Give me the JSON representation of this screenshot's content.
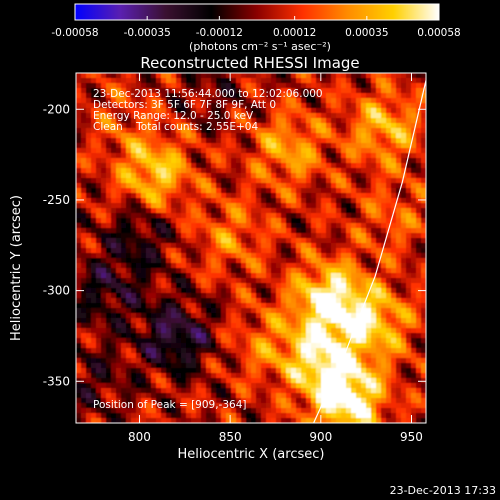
{
  "chart_data": {
    "type": "heatmap",
    "title": "Reconstructed RHESSI Image",
    "xlabel": "Heliocentric X (arcsec)",
    "ylabel": "Heliocentric Y (arcsec)",
    "xlim": [
      765,
      958
    ],
    "ylim": [
      -373,
      -180
    ],
    "x_ticks": [
      800,
      850,
      900,
      950
    ],
    "y_ticks": [
      -200,
      -250,
      -300,
      -350
    ],
    "colorbar": {
      "min": -0.00058,
      "max": 0.00058,
      "ticks": [
        -0.00058,
        -0.00035,
        -0.00012,
        0.00012,
        0.00035,
        0.00058
      ],
      "tick_labels": [
        "-0.00058",
        "-0.00035",
        "-0.00012",
        "0.00012",
        "0.00035",
        "0.00058"
      ],
      "units_label": "(photons cm⁻² s⁻¹ asec⁻²)",
      "colormap": [
        "#0000ff",
        "#5a1fb0",
        "#3a1030",
        "#000000",
        "#8b0000",
        "#ff3000",
        "#ff8c00",
        "#ffd000",
        "#ffffff"
      ]
    },
    "annotations": [
      "23-Dec-2013 11:56:44.000 to 12:02:06.000",
      "Detectors: 3F 5F 6F 7F 8F 9F, Att 0",
      "Energy Range: 12.0 - 25.0 keV",
      "Clean    Total counts: 2.55E+04"
    ],
    "peak_label": "Position of Peak = [909,-364]",
    "peak": [
      909,
      -364
    ],
    "features": [
      {
        "x": 905,
        "y": -305,
        "v": 0.00052
      },
      {
        "x": 915,
        "y": -360,
        "v": 0.00055
      },
      {
        "x": 900,
        "y": -338,
        "v": 0.0004
      },
      {
        "x": 930,
        "y": -318,
        "v": 0.00035
      },
      {
        "x": 808,
        "y": -235,
        "v": 0.00038
      },
      {
        "x": 935,
        "y": -210,
        "v": 0.00032
      },
      {
        "x": 882,
        "y": -222,
        "v": 0.00028
      },
      {
        "x": 850,
        "y": -270,
        "v": 0.0002
      },
      {
        "x": 870,
        "y": -330,
        "v": 0.00018
      },
      {
        "x": 940,
        "y": -260,
        "v": 0.00015
      },
      {
        "x": 790,
        "y": -205,
        "v": 0.0001
      },
      {
        "x": 820,
        "y": -325,
        "v": -0.00034
      },
      {
        "x": 782,
        "y": -300,
        "v": -0.00022
      },
      {
        "x": 800,
        "y": -270,
        "v": -0.0002
      },
      {
        "x": 775,
        "y": -350,
        "v": -0.00015
      },
      {
        "x": 840,
        "y": -190,
        "v": -0.0001
      }
    ],
    "limb_curve": [
      [
        958,
        -184
      ],
      [
        945,
        -240
      ],
      [
        930,
        -292
      ],
      [
        912,
        -338
      ],
      [
        896,
        -373
      ]
    ]
  },
  "footer_timestamp": "23-Dec-2013 17:33"
}
